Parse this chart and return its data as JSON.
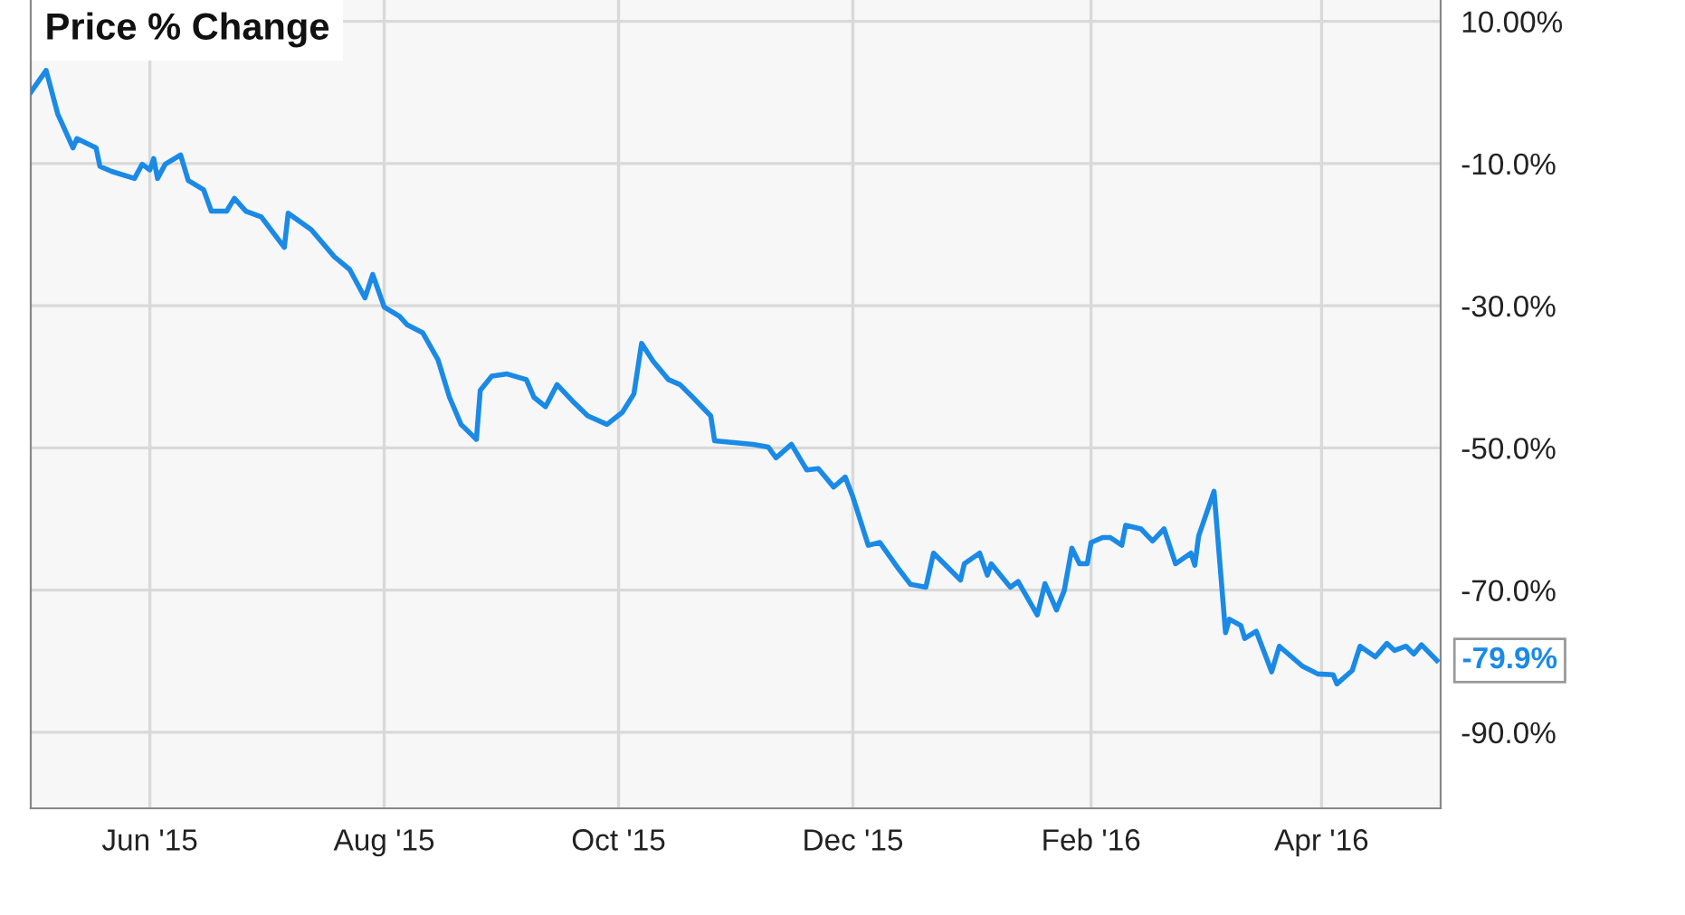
{
  "chart_data": {
    "type": "line",
    "title": "Price % Change",
    "x": [
      "2015-05-01",
      "2015-05-05",
      "2015-05-08",
      "2015-05-12",
      "2015-05-13",
      "2015-05-18",
      "2015-05-19",
      "2015-05-22",
      "2015-05-28",
      "2015-05-30",
      "2015-06-01",
      "2015-06-02",
      "2015-06-03",
      "2015-06-05",
      "2015-06-09",
      "2015-06-11",
      "2015-06-15",
      "2015-06-17",
      "2015-06-21",
      "2015-06-23",
      "2015-06-26",
      "2015-06-30",
      "2015-07-06",
      "2015-07-07",
      "2015-07-13",
      "2015-07-19",
      "2015-07-23",
      "2015-07-27",
      "2015-07-29",
      "2015-08-01",
      "2015-08-05",
      "2015-08-07",
      "2015-08-11",
      "2015-08-15",
      "2015-08-18",
      "2015-08-21",
      "2015-08-25",
      "2015-08-26",
      "2015-08-29",
      "2015-09-02",
      "2015-09-07",
      "2015-09-09",
      "2015-09-12",
      "2015-09-15",
      "2015-09-19",
      "2015-09-23",
      "2015-09-28",
      "2015-10-02",
      "2015-10-05",
      "2015-10-07",
      "2015-10-10",
      "2015-10-14",
      "2015-10-17",
      "2015-10-20",
      "2015-10-25",
      "2015-10-26",
      "2015-11-05",
      "2015-11-09",
      "2015-11-11",
      "2015-11-15",
      "2015-11-19",
      "2015-11-22",
      "2015-11-26",
      "2015-11-29",
      "2015-12-01",
      "2015-12-05",
      "2015-12-08",
      "2015-12-13",
      "2015-12-16",
      "2015-12-20",
      "2015-12-22",
      "2015-12-27",
      "2015-12-29",
      "2015-12-30",
      "2016-01-03",
      "2016-01-05",
      "2016-01-06",
      "2016-01-11",
      "2016-01-13",
      "2016-01-18",
      "2016-01-20",
      "2016-01-23",
      "2016-01-25",
      "2016-01-27",
      "2016-01-29",
      "2016-01-31",
      "2016-02-01",
      "2016-02-04",
      "2016-02-06",
      "2016-02-09",
      "2016-02-10",
      "2016-02-14",
      "2016-02-17",
      "2016-02-20",
      "2016-02-23",
      "2016-02-27",
      "2016-02-28",
      "2016-02-29",
      "2016-03-04",
      "2016-03-07",
      "2016-03-08",
      "2016-03-11",
      "2016-03-12",
      "2016-03-15",
      "2016-03-19",
      "2016-03-21",
      "2016-03-27",
      "2016-03-31",
      "2016-04-04",
      "2016-04-05",
      "2016-04-09",
      "2016-04-11",
      "2016-04-15",
      "2016-04-18",
      "2016-04-20",
      "2016-04-23",
      "2016-04-25",
      "2016-04-27",
      "2016-05-01"
    ],
    "series": [
      {
        "color": "#1a8ae6",
        "values": [
          0,
          3.1,
          -3.0,
          -7.8,
          -6.5,
          -7.8,
          -10.4,
          -11.1,
          -12.1,
          -10.1,
          -10.9,
          -9.3,
          -12.1,
          -10.1,
          -8.8,
          -12.4,
          -13.7,
          -16.7,
          -16.7,
          -14.9,
          -16.7,
          -17.5,
          -21.8,
          -17.0,
          -19.3,
          -23.1,
          -24.9,
          -28.9,
          -25.6,
          -30.2,
          -31.5,
          -32.7,
          -33.8,
          -37.6,
          -42.9,
          -46.7,
          -48.8,
          -41.9,
          -39.9,
          -39.6,
          -40.4,
          -42.9,
          -44.2,
          -41.1,
          -43.4,
          -45.5,
          -46.7,
          -45.0,
          -42.4,
          -35.3,
          -37.8,
          -40.4,
          -41.1,
          -42.7,
          -45.5,
          -49.0,
          -49.5,
          -49.9,
          -51.4,
          -49.5,
          -53.1,
          -52.9,
          -55.5,
          -54.1,
          -56.9,
          -63.7,
          -63.3,
          -67.1,
          -69.2,
          -69.6,
          -64.8,
          -67.5,
          -68.6,
          -66.3,
          -64.8,
          -67.9,
          -66.3,
          -69.6,
          -68.8,
          -73.5,
          -69.1,
          -72.8,
          -70.1,
          -64.1,
          -66.3,
          -66.3,
          -63.3,
          -62.6,
          -62.6,
          -63.7,
          -60.9,
          -61.4,
          -63.1,
          -61.4,
          -66.3,
          -64.8,
          -66.5,
          -62.4,
          -56.1,
          -76.0,
          -74.1,
          -75.0,
          -76.8,
          -75.8,
          -81.5,
          -77.9,
          -80.7,
          -81.8,
          -81.9,
          -83.2,
          -81.3,
          -77.9,
          -79.4,
          -77.5,
          -78.5,
          -77.9,
          -79.0,
          -77.7,
          -79.9
        ]
      }
    ],
    "annotations": [
      {
        "text": "-79.9%",
        "x": "2016-05-01",
        "y": -79.9
      }
    ],
    "xlim": [
      "2015-05-01",
      "2016-05-02"
    ],
    "xticks": [
      {
        "value": "2015-06-01",
        "label": "Jun '15"
      },
      {
        "value": "2015-08-01",
        "label": "Aug '15"
      },
      {
        "value": "2015-10-01",
        "label": "Oct '15"
      },
      {
        "value": "2015-12-01",
        "label": "Dec '15"
      },
      {
        "value": "2016-02-01",
        "label": "Feb '16"
      },
      {
        "value": "2016-04-01",
        "label": "Apr '16"
      }
    ],
    "ylim": [
      -100.7,
      13
    ],
    "yticks": [
      {
        "value": 10,
        "label": "10.00%"
      },
      {
        "value": -10,
        "label": "-10.0%"
      },
      {
        "value": -30,
        "label": "-30.0%"
      },
      {
        "value": -50,
        "label": "-50.0%"
      },
      {
        "value": -70,
        "label": "-70.0%"
      },
      {
        "value": -90,
        "label": "-90.0%"
      }
    ],
    "grid": true,
    "line_style": "solid",
    "marker": "none"
  }
}
